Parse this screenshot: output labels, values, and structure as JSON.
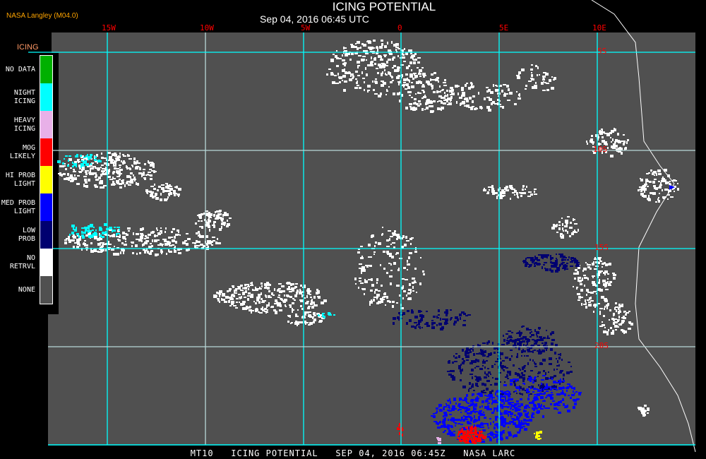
{
  "header": {
    "title": "ICING POTENTIAL",
    "subtitle": "Sep 04, 2016 06:45 UTC",
    "producer": "NASA Langley (M04.0)"
  },
  "map": {
    "background_color": "#505050",
    "grid_color": "#00ffff",
    "label_color": "#ff0000",
    "longitude_labels": [
      "15W",
      "10W",
      "5W",
      "0",
      "5E",
      "10E"
    ],
    "latitude_labels": [
      "5S",
      "10S",
      "15S",
      "20S"
    ]
  },
  "legend": {
    "title": "ICING",
    "items": [
      {
        "label": [
          "NO DATA"
        ],
        "color": "#00b000"
      },
      {
        "label": [
          "NIGHT",
          "ICING"
        ],
        "color": "#00ffff"
      },
      {
        "label": [
          "HEAVY",
          "ICING"
        ],
        "color": "#e8b0e8"
      },
      {
        "label": [
          "MOG",
          "LIKELY"
        ],
        "color": "#ff0000"
      },
      {
        "label": [
          "HI PROB",
          "LIGHT"
        ],
        "color": "#ffff00"
      },
      {
        "label": [
          "MED PROB",
          "LIGHT"
        ],
        "color": "#0000ff"
      },
      {
        "label": [
          "LOW",
          "PROB"
        ],
        "color": "#000070"
      },
      {
        "label": [
          "NO",
          "RETRVL"
        ],
        "color": "#ffffff"
      },
      {
        "label": [
          "NONE"
        ],
        "color": "#505050"
      }
    ]
  },
  "footer": "MT10   ICING POTENTIAL   SEP 04, 2016 06:45Z   NASA LARC"
}
